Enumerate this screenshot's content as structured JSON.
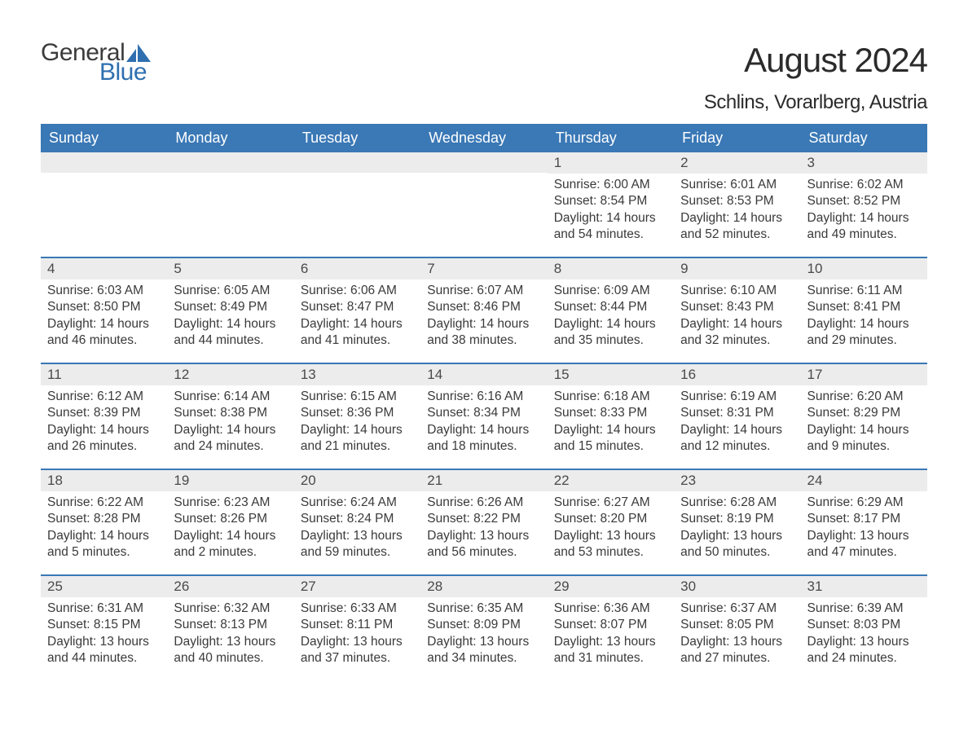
{
  "brand": {
    "general": "General",
    "blue": "Blue"
  },
  "title": "August 2024",
  "location": "Schlins, Vorarlberg, Austria",
  "colors": {
    "header_bg": "#3a78b6",
    "header_text": "#ffffff",
    "datebar_bg": "#ececec",
    "text": "#3a3a3a",
    "logo_blue": "#2f6fb0",
    "row_border": "#3a78b6",
    "background": "#ffffff"
  },
  "typography": {
    "title_fontsize": 42,
    "location_fontsize": 24,
    "header_fontsize": 18,
    "date_fontsize": 17,
    "body_fontsize": 15.5
  },
  "day_names": [
    "Sunday",
    "Monday",
    "Tuesday",
    "Wednesday",
    "Thursday",
    "Friday",
    "Saturday"
  ],
  "weeks": [
    [
      {
        "blank": true
      },
      {
        "blank": true
      },
      {
        "blank": true
      },
      {
        "blank": true
      },
      {
        "date": "1",
        "sunrise": "Sunrise: 6:00 AM",
        "sunset": "Sunset: 8:54 PM",
        "daylight": "Daylight: 14 hours and 54 minutes."
      },
      {
        "date": "2",
        "sunrise": "Sunrise: 6:01 AM",
        "sunset": "Sunset: 8:53 PM",
        "daylight": "Daylight: 14 hours and 52 minutes."
      },
      {
        "date": "3",
        "sunrise": "Sunrise: 6:02 AM",
        "sunset": "Sunset: 8:52 PM",
        "daylight": "Daylight: 14 hours and 49 minutes."
      }
    ],
    [
      {
        "date": "4",
        "sunrise": "Sunrise: 6:03 AM",
        "sunset": "Sunset: 8:50 PM",
        "daylight": "Daylight: 14 hours and 46 minutes."
      },
      {
        "date": "5",
        "sunrise": "Sunrise: 6:05 AM",
        "sunset": "Sunset: 8:49 PM",
        "daylight": "Daylight: 14 hours and 44 minutes."
      },
      {
        "date": "6",
        "sunrise": "Sunrise: 6:06 AM",
        "sunset": "Sunset: 8:47 PM",
        "daylight": "Daylight: 14 hours and 41 minutes."
      },
      {
        "date": "7",
        "sunrise": "Sunrise: 6:07 AM",
        "sunset": "Sunset: 8:46 PM",
        "daylight": "Daylight: 14 hours and 38 minutes."
      },
      {
        "date": "8",
        "sunrise": "Sunrise: 6:09 AM",
        "sunset": "Sunset: 8:44 PM",
        "daylight": "Daylight: 14 hours and 35 minutes."
      },
      {
        "date": "9",
        "sunrise": "Sunrise: 6:10 AM",
        "sunset": "Sunset: 8:43 PM",
        "daylight": "Daylight: 14 hours and 32 minutes."
      },
      {
        "date": "10",
        "sunrise": "Sunrise: 6:11 AM",
        "sunset": "Sunset: 8:41 PM",
        "daylight": "Daylight: 14 hours and 29 minutes."
      }
    ],
    [
      {
        "date": "11",
        "sunrise": "Sunrise: 6:12 AM",
        "sunset": "Sunset: 8:39 PM",
        "daylight": "Daylight: 14 hours and 26 minutes."
      },
      {
        "date": "12",
        "sunrise": "Sunrise: 6:14 AM",
        "sunset": "Sunset: 8:38 PM",
        "daylight": "Daylight: 14 hours and 24 minutes."
      },
      {
        "date": "13",
        "sunrise": "Sunrise: 6:15 AM",
        "sunset": "Sunset: 8:36 PM",
        "daylight": "Daylight: 14 hours and 21 minutes."
      },
      {
        "date": "14",
        "sunrise": "Sunrise: 6:16 AM",
        "sunset": "Sunset: 8:34 PM",
        "daylight": "Daylight: 14 hours and 18 minutes."
      },
      {
        "date": "15",
        "sunrise": "Sunrise: 6:18 AM",
        "sunset": "Sunset: 8:33 PM",
        "daylight": "Daylight: 14 hours and 15 minutes."
      },
      {
        "date": "16",
        "sunrise": "Sunrise: 6:19 AM",
        "sunset": "Sunset: 8:31 PM",
        "daylight": "Daylight: 14 hours and 12 minutes."
      },
      {
        "date": "17",
        "sunrise": "Sunrise: 6:20 AM",
        "sunset": "Sunset: 8:29 PM",
        "daylight": "Daylight: 14 hours and 9 minutes."
      }
    ],
    [
      {
        "date": "18",
        "sunrise": "Sunrise: 6:22 AM",
        "sunset": "Sunset: 8:28 PM",
        "daylight": "Daylight: 14 hours and 5 minutes."
      },
      {
        "date": "19",
        "sunrise": "Sunrise: 6:23 AM",
        "sunset": "Sunset: 8:26 PM",
        "daylight": "Daylight: 14 hours and 2 minutes."
      },
      {
        "date": "20",
        "sunrise": "Sunrise: 6:24 AM",
        "sunset": "Sunset: 8:24 PM",
        "daylight": "Daylight: 13 hours and 59 minutes."
      },
      {
        "date": "21",
        "sunrise": "Sunrise: 6:26 AM",
        "sunset": "Sunset: 8:22 PM",
        "daylight": "Daylight: 13 hours and 56 minutes."
      },
      {
        "date": "22",
        "sunrise": "Sunrise: 6:27 AM",
        "sunset": "Sunset: 8:20 PM",
        "daylight": "Daylight: 13 hours and 53 minutes."
      },
      {
        "date": "23",
        "sunrise": "Sunrise: 6:28 AM",
        "sunset": "Sunset: 8:19 PM",
        "daylight": "Daylight: 13 hours and 50 minutes."
      },
      {
        "date": "24",
        "sunrise": "Sunrise: 6:29 AM",
        "sunset": "Sunset: 8:17 PM",
        "daylight": "Daylight: 13 hours and 47 minutes."
      }
    ],
    [
      {
        "date": "25",
        "sunrise": "Sunrise: 6:31 AM",
        "sunset": "Sunset: 8:15 PM",
        "daylight": "Daylight: 13 hours and 44 minutes."
      },
      {
        "date": "26",
        "sunrise": "Sunrise: 6:32 AM",
        "sunset": "Sunset: 8:13 PM",
        "daylight": "Daylight: 13 hours and 40 minutes."
      },
      {
        "date": "27",
        "sunrise": "Sunrise: 6:33 AM",
        "sunset": "Sunset: 8:11 PM",
        "daylight": "Daylight: 13 hours and 37 minutes."
      },
      {
        "date": "28",
        "sunrise": "Sunrise: 6:35 AM",
        "sunset": "Sunset: 8:09 PM",
        "daylight": "Daylight: 13 hours and 34 minutes."
      },
      {
        "date": "29",
        "sunrise": "Sunrise: 6:36 AM",
        "sunset": "Sunset: 8:07 PM",
        "daylight": "Daylight: 13 hours and 31 minutes."
      },
      {
        "date": "30",
        "sunrise": "Sunrise: 6:37 AM",
        "sunset": "Sunset: 8:05 PM",
        "daylight": "Daylight: 13 hours and 27 minutes."
      },
      {
        "date": "31",
        "sunrise": "Sunrise: 6:39 AM",
        "sunset": "Sunset: 8:03 PM",
        "daylight": "Daylight: 13 hours and 24 minutes."
      }
    ]
  ]
}
